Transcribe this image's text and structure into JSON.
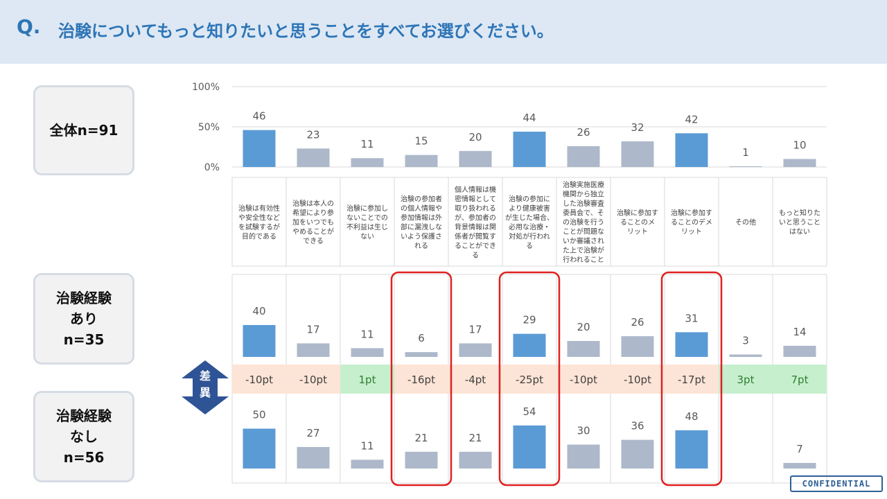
{
  "header": {
    "q": "Q.",
    "title": "治験についてもっと知りたいと思うことをすべてお選びください。"
  },
  "groups": {
    "all": {
      "lines": [
        "全体n=91"
      ]
    },
    "experienced": {
      "lines": [
        "治験経験",
        "あり",
        "n=35"
      ]
    },
    "inexperienced": {
      "lines": [
        "治験経験",
        "なし",
        "n=56"
      ]
    }
  },
  "diff_label": [
    "差",
    "異"
  ],
  "confidential": "CONFIDENTIAL",
  "colors": {
    "highlight_bar": "#5b9bd5",
    "normal_bar": "#adb9ca",
    "negative_diff_bg": "#fce4d6",
    "positive_diff_bg": "#c6efce",
    "positive_diff_text": "#2e7d32",
    "highlight_box": "#e02020",
    "diff_badge": "#2f5496"
  },
  "chart_data": {
    "type": "bar",
    "yticks": [
      "100%",
      "50%",
      "0%"
    ],
    "ylim": [
      0,
      100
    ],
    "categories": [
      [
        "治験は有効性",
        "や安全性など",
        "を試験するが",
        "目的である"
      ],
      [
        "治験は本人の",
        "希望により参",
        "加をいつでも",
        "やめることが",
        "できる"
      ],
      [
        "治験に参加し",
        "ないことでの",
        "不利益は生じ",
        "ない"
      ],
      [
        "治験の参加者",
        "の個人情報や",
        "参加情報は外",
        "部に漏洩しな",
        "いよう保護さ",
        "れる"
      ],
      [
        "個人情報は機",
        "密情報として",
        "取り扱われる",
        "が、参加者の",
        "背景情報は関",
        "係者が閲覧す",
        "ることができ",
        "る"
      ],
      [
        "治験の参加に",
        "より健康被害",
        "が生じた場合、",
        "必用な治療・",
        "対処が行われ",
        "る"
      ],
      [
        "治験実施医療",
        "機関から独立",
        "した治験審査",
        "委員会で、そ",
        "の治験を行う",
        "ことが問題な",
        "いか審議され",
        "た上で治験が",
        "行われること"
      ],
      [
        "治験に参加す",
        "ることのメ",
        "リット"
      ],
      [
        "治験に参加す",
        "ることのデメ",
        "リット"
      ],
      [
        "その他"
      ],
      [
        "もっと知りた",
        "いと思うこと",
        "はない"
      ]
    ],
    "highlighted": [
      true,
      false,
      false,
      false,
      false,
      true,
      false,
      false,
      true,
      false,
      false
    ],
    "boxed": [
      false,
      false,
      false,
      true,
      false,
      true,
      false,
      false,
      true,
      false,
      false
    ],
    "series": [
      {
        "name": "全体n=91",
        "values": [
          46,
          23,
          11,
          15,
          20,
          44,
          26,
          32,
          42,
          1,
          10
        ]
      },
      {
        "name": "治験経験あり n=35",
        "values": [
          40,
          17,
          11,
          6,
          17,
          29,
          20,
          26,
          31,
          3,
          14
        ]
      },
      {
        "name": "治験経験なし n=56",
        "values": [
          50,
          27,
          11,
          21,
          21,
          54,
          30,
          36,
          48,
          null,
          7
        ]
      }
    ],
    "diff": [
      "-10pt",
      "-10pt",
      "1pt",
      "-16pt",
      "-4pt",
      "-25pt",
      "-10pt",
      "-10pt",
      "-17pt",
      "3pt",
      "7pt"
    ]
  }
}
